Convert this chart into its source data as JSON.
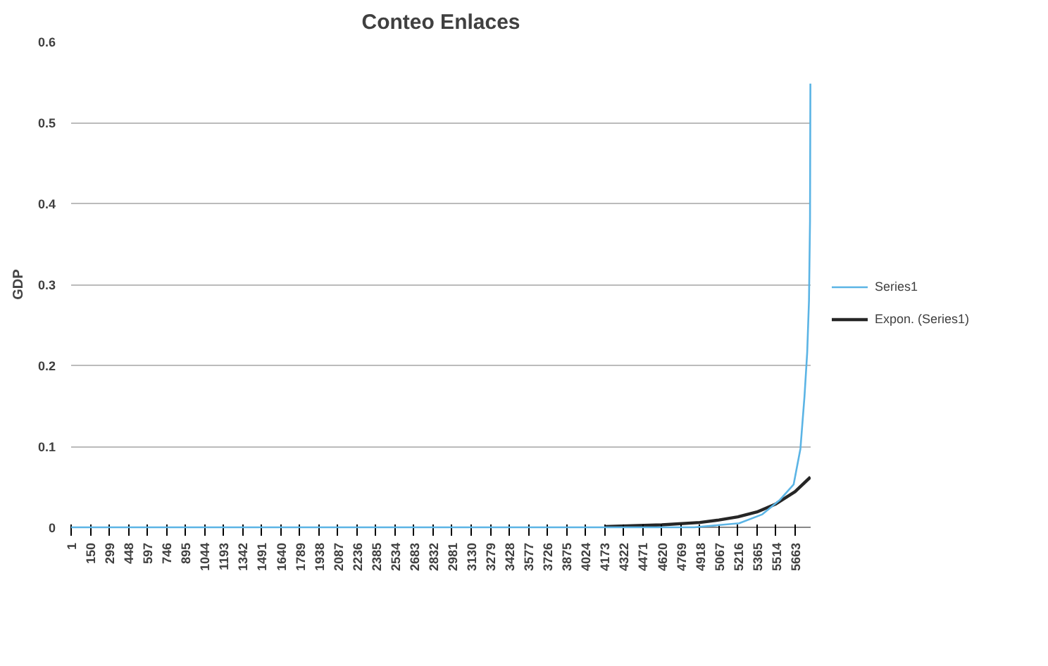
{
  "chart_data": {
    "type": "line",
    "title": "Conteo Enlaces",
    "ylabel": "GDP",
    "xlim": [
      1,
      5785
    ],
    "xticks": [
      1,
      150,
      299,
      448,
      597,
      746,
      895,
      1044,
      1193,
      1342,
      1491,
      1640,
      1789,
      1938,
      2087,
      2236,
      2385,
      2534,
      2683,
      2832,
      2981,
      3130,
      3279,
      3428,
      3577,
      3726,
      3875,
      4024,
      4173,
      4322,
      4471,
      4620,
      4769,
      4918,
      5067,
      5216,
      5365,
      5514,
      5663
    ],
    "ylim": [
      0,
      0.6
    ],
    "yticks": [
      0,
      0.1,
      0.2,
      0.3,
      0.4,
      0.5,
      0.6
    ],
    "grid": "y",
    "legend": "right",
    "marker": "none",
    "line_style": "solid",
    "series": [
      {
        "name": "Series1",
        "color": "#5bb4e5",
        "x": [
          1,
          1000,
          2000,
          3000,
          4000,
          4875,
          5226,
          5407,
          5545,
          5652,
          5705,
          5737,
          5758,
          5772,
          5780,
          5783
        ],
        "values": [
          0,
          0,
          0,
          0,
          0,
          0,
          0.005,
          0.016,
          0.034,
          0.053,
          0.097,
          0.162,
          0.216,
          0.28,
          0.378,
          0.548
        ]
      },
      {
        "name": "Expon. (Series1)",
        "color": "#262626",
        "x": [
          4173,
          4620,
          4918,
          5067,
          5216,
          5365,
          5514,
          5663,
          5783
        ],
        "values": [
          0.001,
          0.003,
          0.006,
          0.009,
          0.013,
          0.019,
          0.029,
          0.044,
          0.062
        ]
      }
    ]
  }
}
